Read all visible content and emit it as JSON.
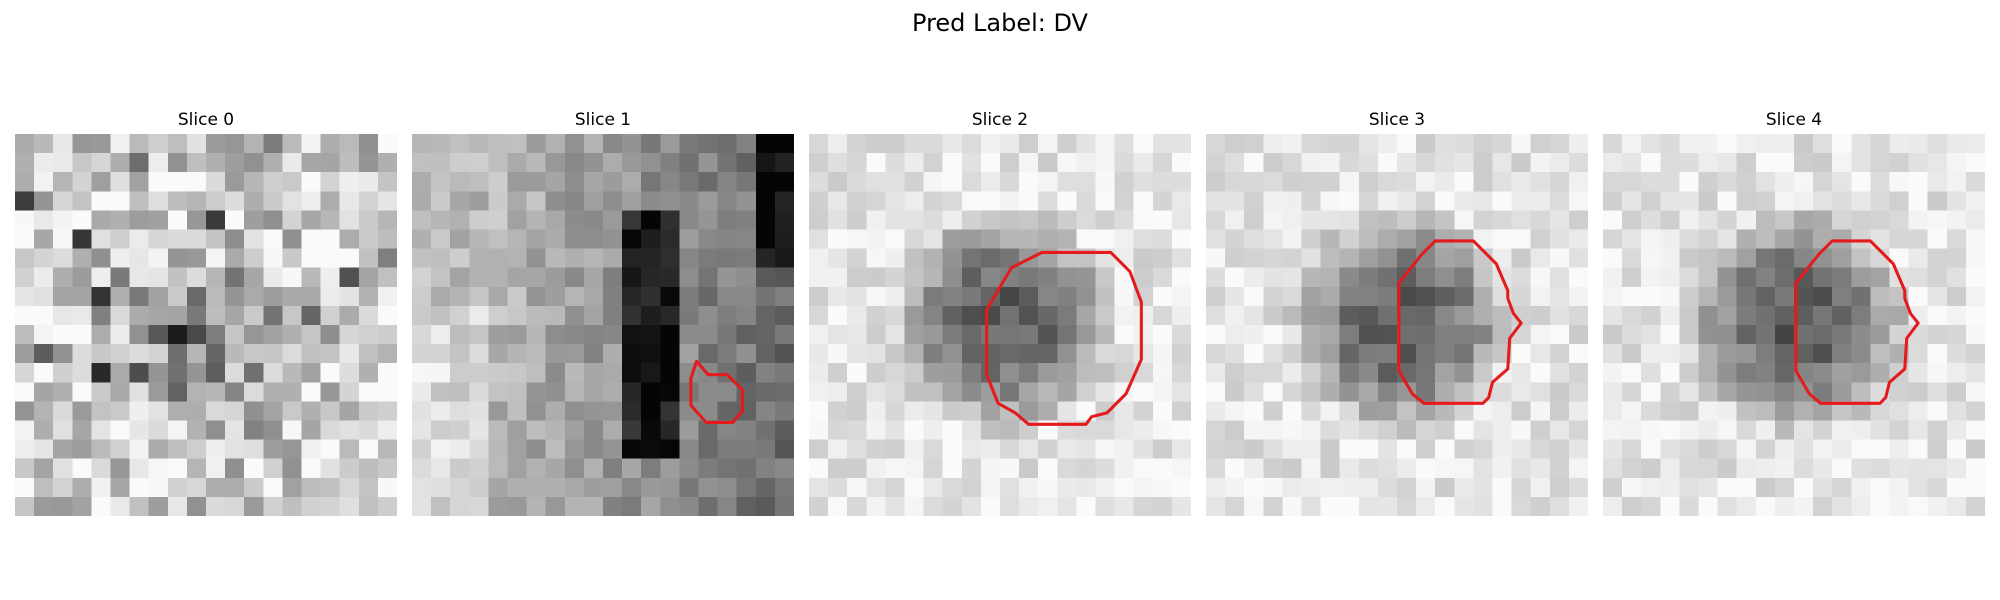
{
  "figure": {
    "title": "Pred Label: DV",
    "panels": [
      {
        "title": "Slice 0",
        "seed": 11,
        "pattern": "mottled",
        "contour": []
      },
      {
        "title": "Slice 1",
        "seed": 23,
        "pattern": "vessel",
        "contour": [
          [
            14.9,
            11.9
          ],
          [
            15.5,
            12.6
          ],
          [
            16.5,
            12.6
          ],
          [
            17.3,
            13.4
          ],
          [
            17.3,
            14.5
          ],
          [
            16.8,
            15.1
          ],
          [
            15.4,
            15.1
          ],
          [
            14.6,
            14.2
          ],
          [
            14.6,
            12.8
          ]
        ]
      },
      {
        "title": "Slice 2",
        "seed": 37,
        "pattern": "nodule",
        "contour": [
          [
            12.2,
            6.2
          ],
          [
            15.8,
            6.2
          ],
          [
            16.8,
            7.2
          ],
          [
            17.4,
            8.8
          ],
          [
            17.4,
            11.8
          ],
          [
            16.6,
            13.6
          ],
          [
            15.6,
            14.6
          ],
          [
            14.8,
            14.8
          ],
          [
            14.5,
            15.2
          ],
          [
            11.5,
            15.2
          ],
          [
            10.8,
            14.6
          ],
          [
            9.9,
            14.1
          ],
          [
            9.3,
            12.6
          ],
          [
            9.3,
            9.2
          ],
          [
            10.6,
            7.0
          ],
          [
            11.8,
            6.4
          ]
        ]
      },
      {
        "title": "Slice 3",
        "seed": 53,
        "pattern": "nodule",
        "contour": [
          [
            12.0,
            5.6
          ],
          [
            14.0,
            5.6
          ],
          [
            15.2,
            6.8
          ],
          [
            15.8,
            8.2
          ],
          [
            15.8,
            8.6
          ],
          [
            16.1,
            9.4
          ],
          [
            16.5,
            9.9
          ],
          [
            15.9,
            10.7
          ],
          [
            15.8,
            12.3
          ],
          [
            15.0,
            13.0
          ],
          [
            14.8,
            13.8
          ],
          [
            14.5,
            14.1
          ],
          [
            11.4,
            14.1
          ],
          [
            10.8,
            13.6
          ],
          [
            10.1,
            12.4
          ],
          [
            10.1,
            7.8
          ],
          [
            11.3,
            6.3
          ]
        ]
      },
      {
        "title": "Slice 4",
        "seed": 71,
        "pattern": "nodule",
        "contour": [
          [
            12.0,
            5.6
          ],
          [
            14.0,
            5.6
          ],
          [
            15.2,
            6.8
          ],
          [
            15.8,
            8.2
          ],
          [
            15.8,
            8.6
          ],
          [
            16.1,
            9.4
          ],
          [
            16.5,
            9.9
          ],
          [
            15.9,
            10.7
          ],
          [
            15.8,
            12.3
          ],
          [
            15.0,
            13.0
          ],
          [
            14.8,
            13.8
          ],
          [
            14.5,
            14.1
          ],
          [
            11.4,
            14.1
          ],
          [
            10.8,
            13.6
          ],
          [
            10.1,
            12.4
          ],
          [
            10.1,
            7.8
          ],
          [
            11.3,
            6.3
          ]
        ]
      }
    ],
    "contour_color": "#e41a1c",
    "colormap": "gray"
  }
}
